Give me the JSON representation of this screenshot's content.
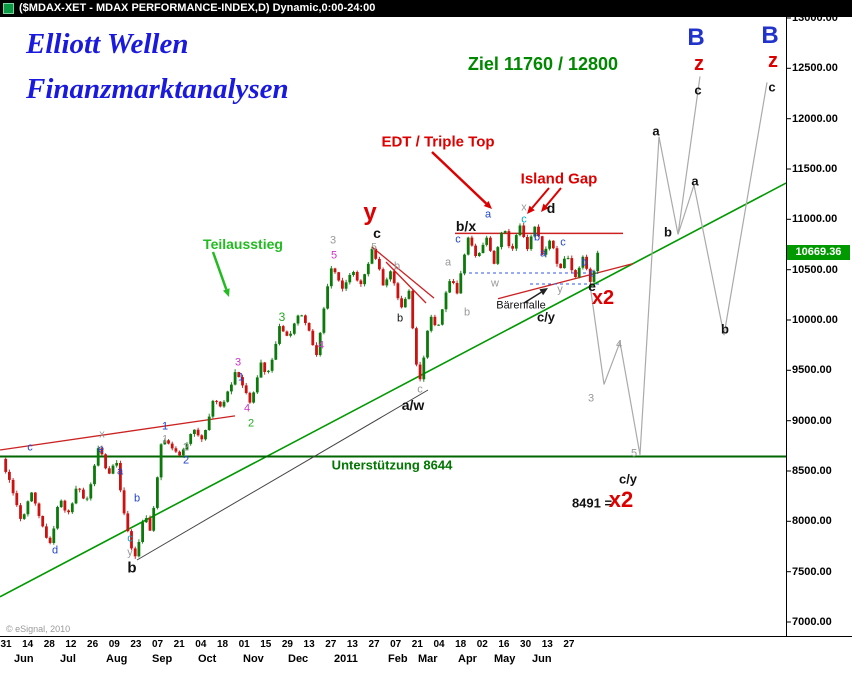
{
  "title_bar": {
    "icon": "chart-app-icon",
    "text": "($MDAX-XET - MDAX PERFORMANCE-INDEX,D) Dynamic,0:00-24:00"
  },
  "brand": {
    "line1": "Elliott Wellen",
    "line2": "Finanzmarktanalysen",
    "color": "#1a1adf"
  },
  "watermark": "© eSignal, 2010",
  "chart_data": {
    "type": "candlestick",
    "title": "$MDAX-XET - MDAX PERFORMANCE-INDEX, Daily",
    "ylim": [
      7000,
      13000
    ],
    "y_tick_labels": [
      "13000.00",
      "12500.00",
      "12000.00",
      "11500.00",
      "11000.00",
      "10500.00",
      "10000.00",
      "9500.00",
      "9000.00",
      "8500.00",
      "8000.00",
      "7500.00",
      "7000.00"
    ],
    "current_price": {
      "label": "10669.36",
      "value": 10669.36,
      "bg": "#009900",
      "text_color": "#ffffff"
    },
    "x_day_ticks": [
      "31",
      "14",
      "28",
      "12",
      "26",
      "09",
      "23",
      "07",
      "21",
      "04",
      "18",
      "01",
      "15",
      "29",
      "13",
      "27",
      "13",
      "27",
      "07",
      "21",
      "04",
      "18",
      "02",
      "16",
      "30",
      "13",
      "27"
    ],
    "x_month_labels": [
      [
        "Jun",
        14
      ],
      [
        "Jul",
        60
      ],
      [
        "Aug",
        106
      ],
      [
        "Sep",
        152
      ],
      [
        "Oct",
        198
      ],
      [
        "Nov",
        243
      ],
      [
        "Dec",
        288
      ],
      [
        "2011",
        334
      ],
      [
        "Feb",
        388
      ],
      [
        "Mar",
        418
      ],
      [
        "Apr",
        458
      ],
      [
        "May",
        494
      ],
      [
        "Jun",
        532
      ]
    ],
    "support_level": 8644,
    "targets": [
      11760,
      12800
    ],
    "projection_low": 8491,
    "colors": {
      "up": "#0b7a0b",
      "down": "#cc1111"
    },
    "price_path": [
      [
        2,
        8620
      ],
      [
        10,
        8380
      ],
      [
        22,
        7970
      ],
      [
        31,
        8290
      ],
      [
        40,
        8010
      ],
      [
        50,
        7760
      ],
      [
        60,
        8250
      ],
      [
        68,
        8050
      ],
      [
        78,
        8380
      ],
      [
        86,
        8160
      ],
      [
        99,
        8760
      ],
      [
        108,
        8470
      ],
      [
        116,
        8620
      ],
      [
        126,
        7960
      ],
      [
        135,
        7620
      ],
      [
        144,
        8070
      ],
      [
        151,
        7900
      ],
      [
        162,
        8840
      ],
      [
        172,
        8720
      ],
      [
        181,
        8660
      ],
      [
        194,
        8940
      ],
      [
        202,
        8790
      ],
      [
        214,
        9240
      ],
      [
        221,
        9110
      ],
      [
        236,
        9490
      ],
      [
        243,
        9330
      ],
      [
        250,
        9170
      ],
      [
        261,
        9560
      ],
      [
        267,
        9420
      ],
      [
        280,
        9950
      ],
      [
        289,
        9800
      ],
      [
        299,
        10080
      ],
      [
        308,
        9900
      ],
      [
        317,
        9660
      ],
      [
        331,
        10540
      ],
      [
        343,
        10310
      ],
      [
        353,
        10480
      ],
      [
        361,
        10340
      ],
      [
        373,
        10720
      ],
      [
        384,
        10330
      ],
      [
        391,
        10500
      ],
      [
        401,
        10100
      ],
      [
        409,
        10300
      ],
      [
        419,
        9320
      ],
      [
        430,
        10060
      ],
      [
        437,
        9900
      ],
      [
        450,
        10420
      ],
      [
        457,
        10280
      ],
      [
        468,
        10830
      ],
      [
        476,
        10610
      ],
      [
        487,
        10800
      ],
      [
        494,
        10570
      ],
      [
        504,
        10940
      ],
      [
        511,
        10660
      ],
      [
        519,
        10970
      ],
      [
        527,
        10700
      ],
      [
        535,
        10950
      ],
      [
        543,
        10640
      ],
      [
        551,
        10820
      ],
      [
        559,
        10480
      ],
      [
        567,
        10680
      ],
      [
        574,
        10400
      ],
      [
        583,
        10620
      ],
      [
        591,
        10380
      ],
      [
        598,
        10670
      ]
    ],
    "lines": [
      {
        "name": "primary-uptrend-line",
        "color": "#009900",
        "w": 1.6,
        "pts": [
          [
            0,
            7250
          ],
          [
            786,
            11360
          ]
        ]
      },
      {
        "name": "support-8644-line",
        "color": "#006600",
        "w": 2,
        "pts": [
          [
            0,
            8644
          ],
          [
            786,
            8644
          ]
        ]
      },
      {
        "name": "left-red-trendline",
        "color": "#cc2222",
        "w": 1.3,
        "pts": [
          [
            0,
            8709
          ],
          [
            235,
            9047
          ]
        ]
      },
      {
        "name": "feb-decline-channel-upper",
        "color": "#cc2222",
        "w": 1.3,
        "pts": [
          [
            372,
            10725
          ],
          [
            434,
            10218
          ]
        ]
      },
      {
        "name": "feb-decline-channel-lower",
        "color": "#cc2222",
        "w": 1.3,
        "pts": [
          [
            386,
            10576
          ],
          [
            426,
            10169
          ]
        ]
      },
      {
        "name": "triple-top-resistance",
        "color": "#cc2222",
        "w": 1.5,
        "pts": [
          [
            455,
            10860
          ],
          [
            623,
            10860
          ]
        ]
      },
      {
        "name": "triangle-support-rising",
        "color": "#cc2222",
        "w": 1.3,
        "pts": [
          [
            498,
            10212
          ],
          [
            633,
            10560
          ]
        ]
      },
      {
        "name": "aug-mar-trendline",
        "color": "#444444",
        "w": 1,
        "pts": [
          [
            137,
            7616
          ],
          [
            428,
            9305
          ]
        ]
      },
      {
        "name": "consolidation-dashed-upper",
        "color": "#3355ee",
        "w": 1,
        "dash": "3,3",
        "pts": [
          [
            463,
            10467
          ],
          [
            601,
            10467
          ]
        ]
      },
      {
        "name": "consolidation-dashed-lower",
        "color": "#3355ee",
        "w": 1,
        "dash": "3,3",
        "pts": [
          [
            530,
            10358
          ],
          [
            600,
            10358
          ]
        ]
      },
      {
        "name": "projected-wave-path-1",
        "color": "#aaaaaa",
        "w": 1.2,
        "pts": [
          [
            590,
            10350
          ],
          [
            604,
            9360
          ],
          [
            620,
            9780
          ],
          [
            640,
            8660
          ],
          [
            659,
            11820
          ],
          [
            678,
            10850
          ],
          [
            700,
            12420
          ]
        ]
      },
      {
        "name": "projected-wave-path-2",
        "color": "#aaaaaa",
        "w": 1.2,
        "pts": [
          [
            678,
            10850
          ],
          [
            694,
            11340
          ],
          [
            724,
            9850
          ],
          [
            767,
            12360
          ]
        ]
      }
    ],
    "arrows": [
      {
        "name": "teilausstieg-arrow",
        "color": "#22bb22",
        "w": 2.5,
        "from": [
          213,
          252
        ],
        "to": [
          229,
          297
        ]
      },
      {
        "name": "edt-arrow",
        "color": "#dd0000",
        "w": 2.5,
        "from": [
          432,
          152
        ],
        "to": [
          492,
          209
        ]
      },
      {
        "name": "island-gap-arrow-1",
        "color": "#dd0000",
        "w": 2,
        "from": [
          549,
          188
        ],
        "to": [
          527,
          214
        ]
      },
      {
        "name": "island-gap-arrow-2",
        "color": "#dd0000",
        "w": 2,
        "from": [
          561,
          188
        ],
        "to": [
          541,
          212
        ]
      },
      {
        "name": "baerenfalle-arrow",
        "color": "#222222",
        "w": 1.5,
        "from": [
          524,
          303
        ],
        "to": [
          548,
          288
        ]
      }
    ],
    "texts": [
      [
        "Ziel 11760 / 12800",
        543,
        64,
        "#008800",
        18,
        1
      ],
      [
        "EDT / Triple Top",
        438,
        142,
        "#dd0000",
        15,
        1
      ],
      [
        "Island Gap",
        559,
        179,
        "#dd0000",
        15,
        1
      ],
      [
        "Teilausstieg",
        243,
        244,
        "#22bb22",
        14,
        1
      ],
      [
        "Unterstützung 8644",
        392,
        465,
        "#007700",
        13,
        1
      ],
      [
        "Bärenfalle",
        521,
        306,
        "#111111",
        11,
        0
      ],
      [
        "8491 =",
        592,
        503,
        "#111111",
        13,
        1
      ]
    ],
    "wave_labels": [
      [
        "c",
        30,
        448,
        "#2244cc",
        11,
        0
      ],
      [
        "d",
        55,
        551,
        "#2244cc",
        11,
        0
      ],
      [
        "x",
        102,
        435,
        "#999999",
        11,
        0
      ],
      [
        "e",
        101,
        450,
        "#2244cc",
        11,
        0
      ],
      [
        "a",
        120,
        472,
        "#2244cc",
        11,
        0
      ],
      [
        "b",
        137,
        499,
        "#2244cc",
        11,
        0
      ],
      [
        "c",
        130,
        539,
        "#00aacc",
        11,
        0
      ],
      [
        "y",
        130,
        553,
        "#999999",
        11,
        0
      ],
      [
        "b",
        132,
        568,
        "#111111",
        15,
        1
      ],
      [
        "1",
        165,
        427,
        "#2244cc",
        11,
        0
      ],
      [
        "1",
        165,
        440,
        "#999999",
        11,
        0
      ],
      [
        "2",
        186,
        448,
        "#999999",
        11,
        0
      ],
      [
        "2",
        186,
        461,
        "#2244cc",
        11,
        0
      ],
      [
        "3",
        238,
        363,
        "#cc33cc",
        11,
        0
      ],
      [
        "1",
        241,
        378,
        "#2244cc",
        11,
        0
      ],
      [
        "4",
        247,
        409,
        "#cc33cc",
        11,
        0
      ],
      [
        "2",
        251,
        424,
        "#22aa22",
        11,
        0
      ],
      [
        "3",
        282,
        317,
        "#22aa22",
        12,
        0
      ],
      [
        "4",
        321,
        346,
        "#cc33cc",
        11,
        0
      ],
      [
        "3",
        333,
        241,
        "#999999",
        11,
        0
      ],
      [
        "5",
        334,
        256,
        "#cc33cc",
        11,
        0
      ],
      [
        "5",
        374,
        248,
        "#999999",
        10,
        0
      ],
      [
        "y",
        370,
        213,
        "#dd0000",
        24,
        1
      ],
      [
        "c",
        377,
        233,
        "#111111",
        14,
        1
      ],
      [
        "b",
        397,
        267,
        "#999999",
        11,
        0
      ],
      [
        "b",
        400,
        319,
        "#111111",
        11,
        0
      ],
      [
        "c",
        420,
        390,
        "#999999",
        11,
        0
      ],
      [
        "a/w",
        413,
        405,
        "#111111",
        14,
        1
      ],
      [
        "a",
        448,
        263,
        "#999999",
        11,
        0
      ],
      [
        "c",
        458,
        240,
        "#2244cc",
        11,
        0
      ],
      [
        "b/x",
        466,
        226,
        "#111111",
        14,
        1
      ],
      [
        "a",
        488,
        215,
        "#2244cc",
        11,
        0
      ],
      [
        "w",
        495,
        284,
        "#999999",
        11,
        0
      ],
      [
        "b",
        467,
        313,
        "#999999",
        11,
        0
      ],
      [
        "x",
        524,
        208,
        "#999999",
        11,
        0
      ],
      [
        "c",
        524,
        220,
        "#00aacc",
        11,
        0
      ],
      [
        "d",
        551,
        208,
        "#111111",
        14,
        1
      ],
      [
        "b",
        537,
        238,
        "#2244cc",
        11,
        0
      ],
      [
        "a",
        543,
        254,
        "#2244cc",
        11,
        0
      ],
      [
        "c",
        563,
        243,
        "#2244cc",
        11,
        0
      ],
      [
        "b",
        584,
        263,
        "#2244cc",
        11,
        0
      ],
      [
        "c",
        592,
        274,
        "#2244cc",
        11,
        0
      ],
      [
        "e",
        592,
        286,
        "#111111",
        14,
        1
      ],
      [
        "y",
        560,
        290,
        "#999999",
        11,
        0
      ],
      [
        "x2",
        603,
        298,
        "#dd0000",
        20,
        1
      ],
      [
        "c/y",
        546,
        317,
        "#111111",
        13,
        1
      ],
      [
        "3",
        591,
        399,
        "#999999",
        11,
        0
      ],
      [
        "4",
        619,
        345,
        "#999999",
        11,
        0
      ],
      [
        "5",
        634,
        454,
        "#999999",
        11,
        0
      ],
      [
        "c/y",
        628,
        479,
        "#111111",
        13,
        1
      ],
      [
        "x2",
        621,
        500,
        "#dd0000",
        22,
        1
      ],
      [
        "a",
        656,
        131,
        "#111111",
        13,
        1
      ],
      [
        "b",
        668,
        232,
        "#111111",
        13,
        1
      ],
      [
        "c",
        698,
        90,
        "#111111",
        13,
        1
      ],
      [
        "z",
        699,
        64,
        "#dd0000",
        20,
        1
      ],
      [
        "B",
        696,
        38,
        "#2233cc",
        24,
        1
      ],
      [
        "a",
        695,
        181,
        "#111111",
        13,
        1
      ],
      [
        "b",
        725,
        329,
        "#111111",
        13,
        1
      ],
      [
        "c",
        772,
        87,
        "#111111",
        13,
        1
      ],
      [
        "z",
        773,
        61,
        "#dd0000",
        20,
        1
      ],
      [
        "B",
        770,
        36,
        "#2233cc",
        24,
        1
      ]
    ]
  }
}
